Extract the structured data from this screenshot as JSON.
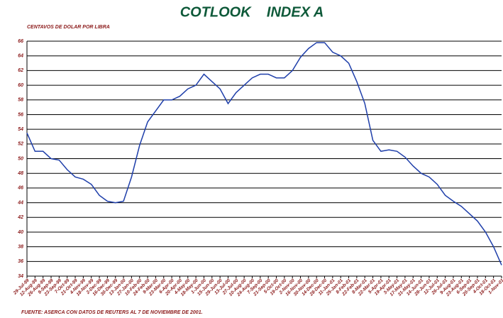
{
  "chart_data": {
    "type": "line",
    "title": "COTLOOK    INDEX A",
    "subtitle": "CENTAVOS DE DOLAR POR LIBRA",
    "source": "FUENTE: ASERCA CON DATOS DE REUTERS AL 7 DE NOVIEMBRE DE 2001.",
    "categories": [
      "29-Jul-99",
      "12-Aug-99",
      "26-Aug-99",
      "9-Sep-99",
      "23-Sep-99",
      "7-Oct-99",
      "21-Oct-99",
      "4-Nov-99",
      "18-Nov-99",
      "2-Dec-99",
      "16-Dec-99",
      "30-Dec-99",
      "13-Jan-00",
      "27-Jan-00",
      "10-Feb-00",
      "24-Feb-00",
      "9-Mar-00",
      "23-Mar-00",
      "6-Apr-00",
      "20-Apr-00",
      "4-May-00",
      "18-May-00",
      "1-Jun-00",
      "15-Jun-00",
      "29-Jun-00",
      "13-Jul-00",
      "27-Jul-00",
      "10-Aug-00",
      "24-Aug-00",
      "7-Sep-00",
      "21-Sep-00",
      "5-Oct-00",
      "19-Oct-00",
      "2-Nov-00",
      "16-Nov-00",
      "30-Nov-00",
      "14-Dec-00",
      "28-Dec-00",
      "11-Jan-01",
      "25-Jan-01",
      "8-Feb-01",
      "22-Feb-01",
      "8-Mar-01",
      "22-Mar-01",
      "5-Apr-01",
      "19-Apr-01",
      "3-May-01",
      "17-May-01",
      "31-May-01",
      "14-Jun-01",
      "28-Jun-01",
      "12-Jul-01",
      "26-Jul-01",
      "9-Aug-01",
      "23-Aug-01",
      "6-Sep-01",
      "20-Sep-01",
      "4-Oct-01",
      "18-Oct-01",
      "1-Nov-01"
    ],
    "series": [
      {
        "name": "Cotlook Index A",
        "color": "#1f3faa",
        "values": [
          53.5,
          51,
          51,
          50,
          49.8,
          48.5,
          47.5,
          47.2,
          46.5,
          45,
          44.2,
          44,
          44.2,
          47.5,
          51.8,
          55,
          56.5,
          58,
          58,
          58.5,
          59.5,
          60,
          61.5,
          60.5,
          59.5,
          57.5,
          59,
          60,
          61,
          61.5,
          61.5,
          61,
          61,
          62,
          63.8,
          65,
          65.8,
          65.8,
          64.5,
          64,
          63,
          60.5,
          57.5,
          52.5,
          51,
          51.2,
          51,
          50.2,
          49,
          48,
          47.5,
          46.5,
          45,
          44.2,
          43.5,
          42.5,
          41.5,
          40,
          38,
          35.5
        ]
      }
    ],
    "ylim": [
      34,
      66
    ],
    "yticks": [
      34,
      36,
      38,
      40,
      42,
      44,
      46,
      48,
      50,
      52,
      54,
      56,
      58,
      60,
      62,
      64,
      66
    ],
    "grid": true
  }
}
